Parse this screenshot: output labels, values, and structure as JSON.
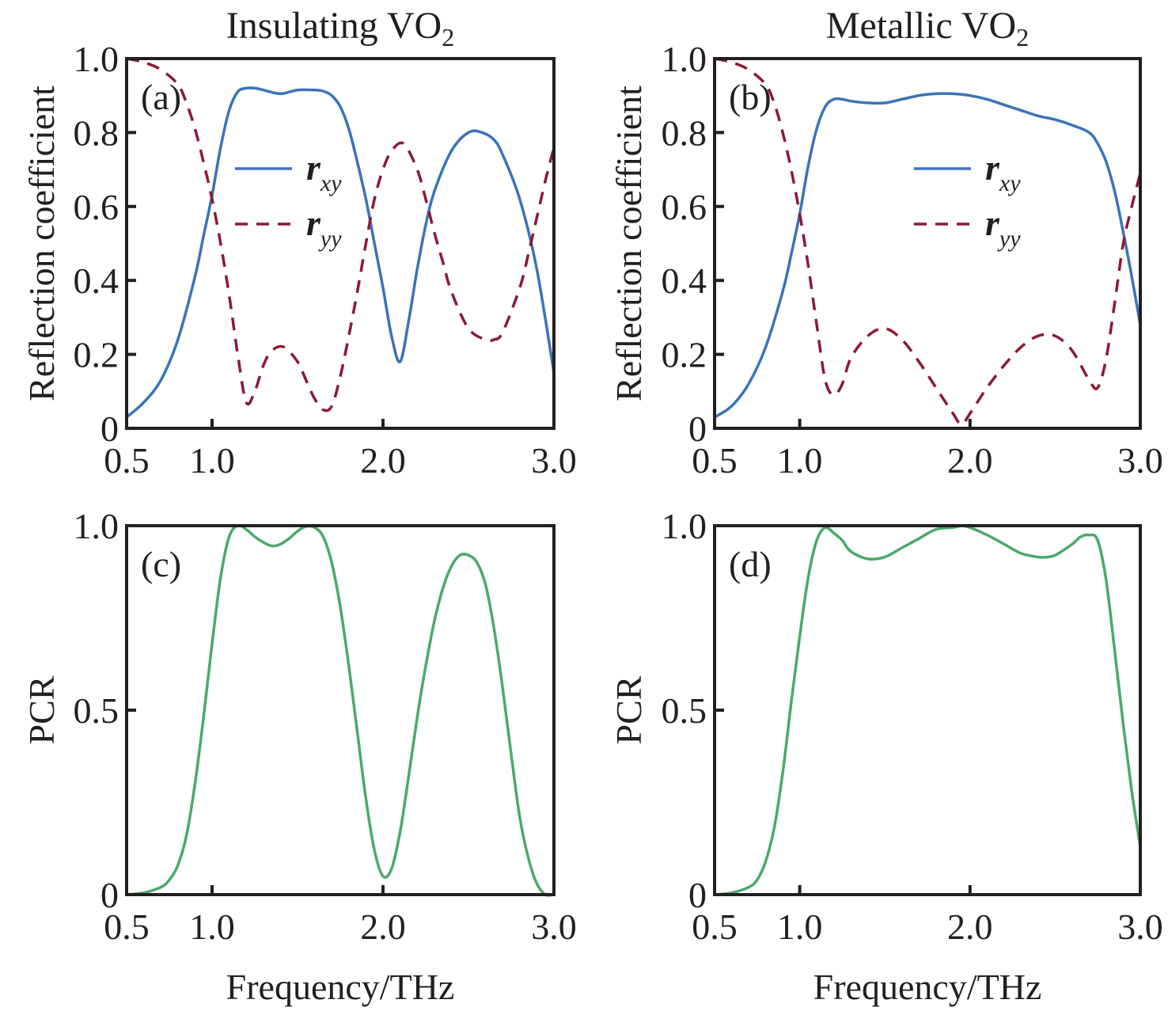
{
  "chart_data": [
    {
      "id": "a",
      "type": "line",
      "panel_label": "(a)",
      "title": "Insulating VO",
      "title_subscript": "2",
      "xlabel": "",
      "ylabel": "Reflection coefficient",
      "xlim": [
        0.5,
        3.0
      ],
      "ylim": [
        0,
        1.0
      ],
      "xticks": [
        0.5,
        1.0,
        2.0,
        3.0
      ],
      "xtick_labels": [
        "0.5",
        "1.0",
        "2.0",
        "3.0"
      ],
      "yticks": [
        0,
        0.2,
        0.4,
        0.6,
        0.8,
        1.0
      ],
      "ytick_labels": [
        "0",
        "0.2",
        "0.4",
        "0.6",
        "0.8",
        "1.0"
      ],
      "grid": false,
      "legend": {
        "placement": "center-left",
        "entries": [
          {
            "name": "r",
            "sub": "xy",
            "style": "solid",
            "color": "#3b73b9"
          },
          {
            "name": "r",
            "sub": "yy",
            "style": "dashed",
            "color": "#8b1a35"
          }
        ]
      },
      "series": [
        {
          "name": "r_xy",
          "style": "solid",
          "color": "#3b73b9",
          "x": [
            0.5,
            0.6,
            0.7,
            0.8,
            0.9,
            0.95,
            1.0,
            1.05,
            1.1,
            1.15,
            1.2,
            1.25,
            1.3,
            1.4,
            1.5,
            1.6,
            1.65,
            1.7,
            1.75,
            1.8,
            1.85,
            1.9,
            1.95,
            2.0,
            2.05,
            2.1,
            2.15,
            2.2,
            2.25,
            2.3,
            2.4,
            2.5,
            2.58,
            2.65,
            2.7,
            2.8,
            2.9,
            3.0
          ],
          "y": [
            0.03,
            0.07,
            0.13,
            0.24,
            0.41,
            0.52,
            0.63,
            0.76,
            0.86,
            0.91,
            0.92,
            0.92,
            0.915,
            0.905,
            0.915,
            0.915,
            0.912,
            0.9,
            0.87,
            0.81,
            0.72,
            0.62,
            0.5,
            0.38,
            0.25,
            0.18,
            0.29,
            0.43,
            0.55,
            0.64,
            0.75,
            0.8,
            0.8,
            0.78,
            0.74,
            0.62,
            0.43,
            0.15
          ]
        },
        {
          "name": "r_yy",
          "style": "dashed",
          "color": "#8b1a35",
          "x": [
            0.5,
            0.6,
            0.7,
            0.8,
            0.85,
            0.9,
            0.95,
            1.0,
            1.05,
            1.1,
            1.15,
            1.2,
            1.25,
            1.3,
            1.35,
            1.42,
            1.5,
            1.55,
            1.6,
            1.65,
            1.7,
            1.75,
            1.8,
            1.85,
            1.9,
            1.95,
            2.0,
            2.05,
            2.12,
            2.2,
            2.25,
            2.3,
            2.35,
            2.4,
            2.5,
            2.6,
            2.65,
            2.7,
            2.8,
            2.85,
            2.9,
            2.95,
            3.0
          ],
          "y": [
            1.0,
            0.99,
            0.97,
            0.93,
            0.88,
            0.81,
            0.72,
            0.62,
            0.5,
            0.36,
            0.2,
            0.07,
            0.1,
            0.17,
            0.21,
            0.22,
            0.18,
            0.13,
            0.08,
            0.05,
            0.06,
            0.14,
            0.25,
            0.37,
            0.5,
            0.62,
            0.7,
            0.75,
            0.77,
            0.7,
            0.62,
            0.53,
            0.45,
            0.37,
            0.27,
            0.24,
            0.24,
            0.26,
            0.38,
            0.47,
            0.57,
            0.67,
            0.76
          ]
        }
      ]
    },
    {
      "id": "b",
      "type": "line",
      "panel_label": "(b)",
      "title": "Metallic VO",
      "title_subscript": "2",
      "xlabel": "",
      "ylabel": "Reflection coefficient",
      "xlim": [
        0.5,
        3.0
      ],
      "ylim": [
        0,
        1.0
      ],
      "xticks": [
        0.5,
        1.0,
        2.0,
        3.0
      ],
      "xtick_labels": [
        "0.5",
        "1.0",
        "2.0",
        "3.0"
      ],
      "yticks": [
        0,
        0.2,
        0.4,
        0.6,
        0.8,
        1.0
      ],
      "ytick_labels": [
        "0",
        "0.2",
        "0.4",
        "0.6",
        "0.8",
        "1.0"
      ],
      "grid": false,
      "legend": {
        "placement": "center-right",
        "entries": [
          {
            "name": "r",
            "sub": "xy",
            "style": "solid",
            "color": "#3b73b9"
          },
          {
            "name": "r",
            "sub": "yy",
            "style": "dashed",
            "color": "#8b1a35"
          }
        ]
      },
      "series": [
        {
          "name": "r_xy",
          "style": "solid",
          "color": "#3b73b9",
          "x": [
            0.5,
            0.6,
            0.7,
            0.8,
            0.9,
            0.95,
            1.0,
            1.05,
            1.1,
            1.15,
            1.2,
            1.25,
            1.3,
            1.4,
            1.5,
            1.6,
            1.7,
            1.8,
            1.9,
            2.0,
            2.1,
            2.2,
            2.3,
            2.4,
            2.5,
            2.6,
            2.7,
            2.75,
            2.8,
            2.85,
            2.9,
            2.95,
            3.0
          ],
          "y": [
            0.03,
            0.06,
            0.12,
            0.22,
            0.37,
            0.47,
            0.58,
            0.71,
            0.81,
            0.87,
            0.89,
            0.89,
            0.885,
            0.88,
            0.88,
            0.89,
            0.9,
            0.905,
            0.905,
            0.9,
            0.89,
            0.875,
            0.86,
            0.845,
            0.835,
            0.82,
            0.8,
            0.77,
            0.72,
            0.64,
            0.53,
            0.41,
            0.28
          ]
        },
        {
          "name": "r_yy",
          "style": "dashed",
          "color": "#8b1a35",
          "x": [
            0.5,
            0.6,
            0.7,
            0.8,
            0.85,
            0.9,
            0.95,
            1.0,
            1.05,
            1.1,
            1.15,
            1.2,
            1.25,
            1.3,
            1.4,
            1.5,
            1.6,
            1.7,
            1.8,
            1.9,
            1.95,
            2.0,
            2.1,
            2.2,
            2.3,
            2.4,
            2.5,
            2.6,
            2.7,
            2.75,
            2.8,
            2.85,
            2.9,
            2.95,
            3.0
          ],
          "y": [
            1.0,
            0.99,
            0.97,
            0.93,
            0.88,
            0.8,
            0.7,
            0.58,
            0.44,
            0.28,
            0.13,
            0.09,
            0.12,
            0.19,
            0.25,
            0.27,
            0.24,
            0.18,
            0.11,
            0.04,
            0.01,
            0.04,
            0.11,
            0.17,
            0.22,
            0.25,
            0.25,
            0.21,
            0.13,
            0.11,
            0.19,
            0.34,
            0.5,
            0.6,
            0.69
          ]
        }
      ]
    },
    {
      "id": "c",
      "type": "line",
      "panel_label": "(c)",
      "xlabel": "Frequency/THz",
      "ylabel": "PCR",
      "xlim": [
        0.5,
        3.0
      ],
      "ylim": [
        0,
        1.0
      ],
      "xticks": [
        0.5,
        1.0,
        2.0,
        3.0
      ],
      "xtick_labels": [
        "0.5",
        "1.0",
        "2.0",
        "3.0"
      ],
      "yticks": [
        0,
        0.5,
        1.0
      ],
      "ytick_labels": [
        "0",
        "0.5",
        "1.0"
      ],
      "grid": false,
      "series": [
        {
          "name": "PCR",
          "style": "solid",
          "color": "#4aa96c",
          "x": [
            0.5,
            0.6,
            0.7,
            0.75,
            0.8,
            0.85,
            0.9,
            0.95,
            1.0,
            1.05,
            1.1,
            1.15,
            1.2,
            1.25,
            1.3,
            1.35,
            1.4,
            1.45,
            1.5,
            1.55,
            1.6,
            1.65,
            1.7,
            1.75,
            1.8,
            1.85,
            1.9,
            1.95,
            2.0,
            2.05,
            2.1,
            2.15,
            2.2,
            2.25,
            2.3,
            2.35,
            2.4,
            2.45,
            2.5,
            2.55,
            2.6,
            2.65,
            2.7,
            2.75,
            2.8,
            2.85,
            2.9,
            2.95,
            3.0
          ],
          "y": [
            0.0,
            0.005,
            0.02,
            0.04,
            0.08,
            0.16,
            0.3,
            0.48,
            0.68,
            0.86,
            0.97,
            1.0,
            0.99,
            0.97,
            0.955,
            0.945,
            0.95,
            0.965,
            0.985,
            0.998,
            0.995,
            0.97,
            0.9,
            0.78,
            0.62,
            0.44,
            0.26,
            0.12,
            0.05,
            0.07,
            0.17,
            0.32,
            0.48,
            0.62,
            0.74,
            0.83,
            0.89,
            0.92,
            0.92,
            0.9,
            0.84,
            0.72,
            0.56,
            0.38,
            0.21,
            0.1,
            0.03,
            0.0,
            0.0
          ]
        }
      ]
    },
    {
      "id": "d",
      "type": "line",
      "panel_label": "(d)",
      "xlabel": "Frequency/THz",
      "ylabel": "PCR",
      "xlim": [
        0.5,
        3.0
      ],
      "ylim": [
        0,
        1.0
      ],
      "xticks": [
        0.5,
        1.0,
        2.0,
        3.0
      ],
      "xtick_labels": [
        "0.5",
        "1.0",
        "2.0",
        "3.0"
      ],
      "yticks": [
        0,
        0.5,
        1.0
      ],
      "ytick_labels": [
        "0",
        "0.5",
        "1.0"
      ],
      "grid": false,
      "series": [
        {
          "name": "PCR",
          "style": "solid",
          "color": "#4aa96c",
          "x": [
            0.5,
            0.6,
            0.7,
            0.75,
            0.8,
            0.85,
            0.9,
            0.95,
            1.0,
            1.05,
            1.1,
            1.15,
            1.2,
            1.25,
            1.3,
            1.4,
            1.5,
            1.6,
            1.7,
            1.8,
            1.9,
            1.95,
            2.0,
            2.1,
            2.2,
            2.3,
            2.4,
            2.45,
            2.5,
            2.6,
            2.65,
            2.7,
            2.75,
            2.8,
            2.85,
            2.9,
            2.95,
            3.0
          ],
          "y": [
            0.0,
            0.005,
            0.02,
            0.04,
            0.09,
            0.18,
            0.33,
            0.52,
            0.7,
            0.86,
            0.96,
            0.995,
            0.98,
            0.96,
            0.93,
            0.91,
            0.915,
            0.94,
            0.965,
            0.99,
            0.995,
            1.0,
            0.995,
            0.975,
            0.95,
            0.925,
            0.915,
            0.915,
            0.92,
            0.95,
            0.97,
            0.975,
            0.96,
            0.85,
            0.66,
            0.46,
            0.28,
            0.13
          ]
        }
      ]
    }
  ]
}
